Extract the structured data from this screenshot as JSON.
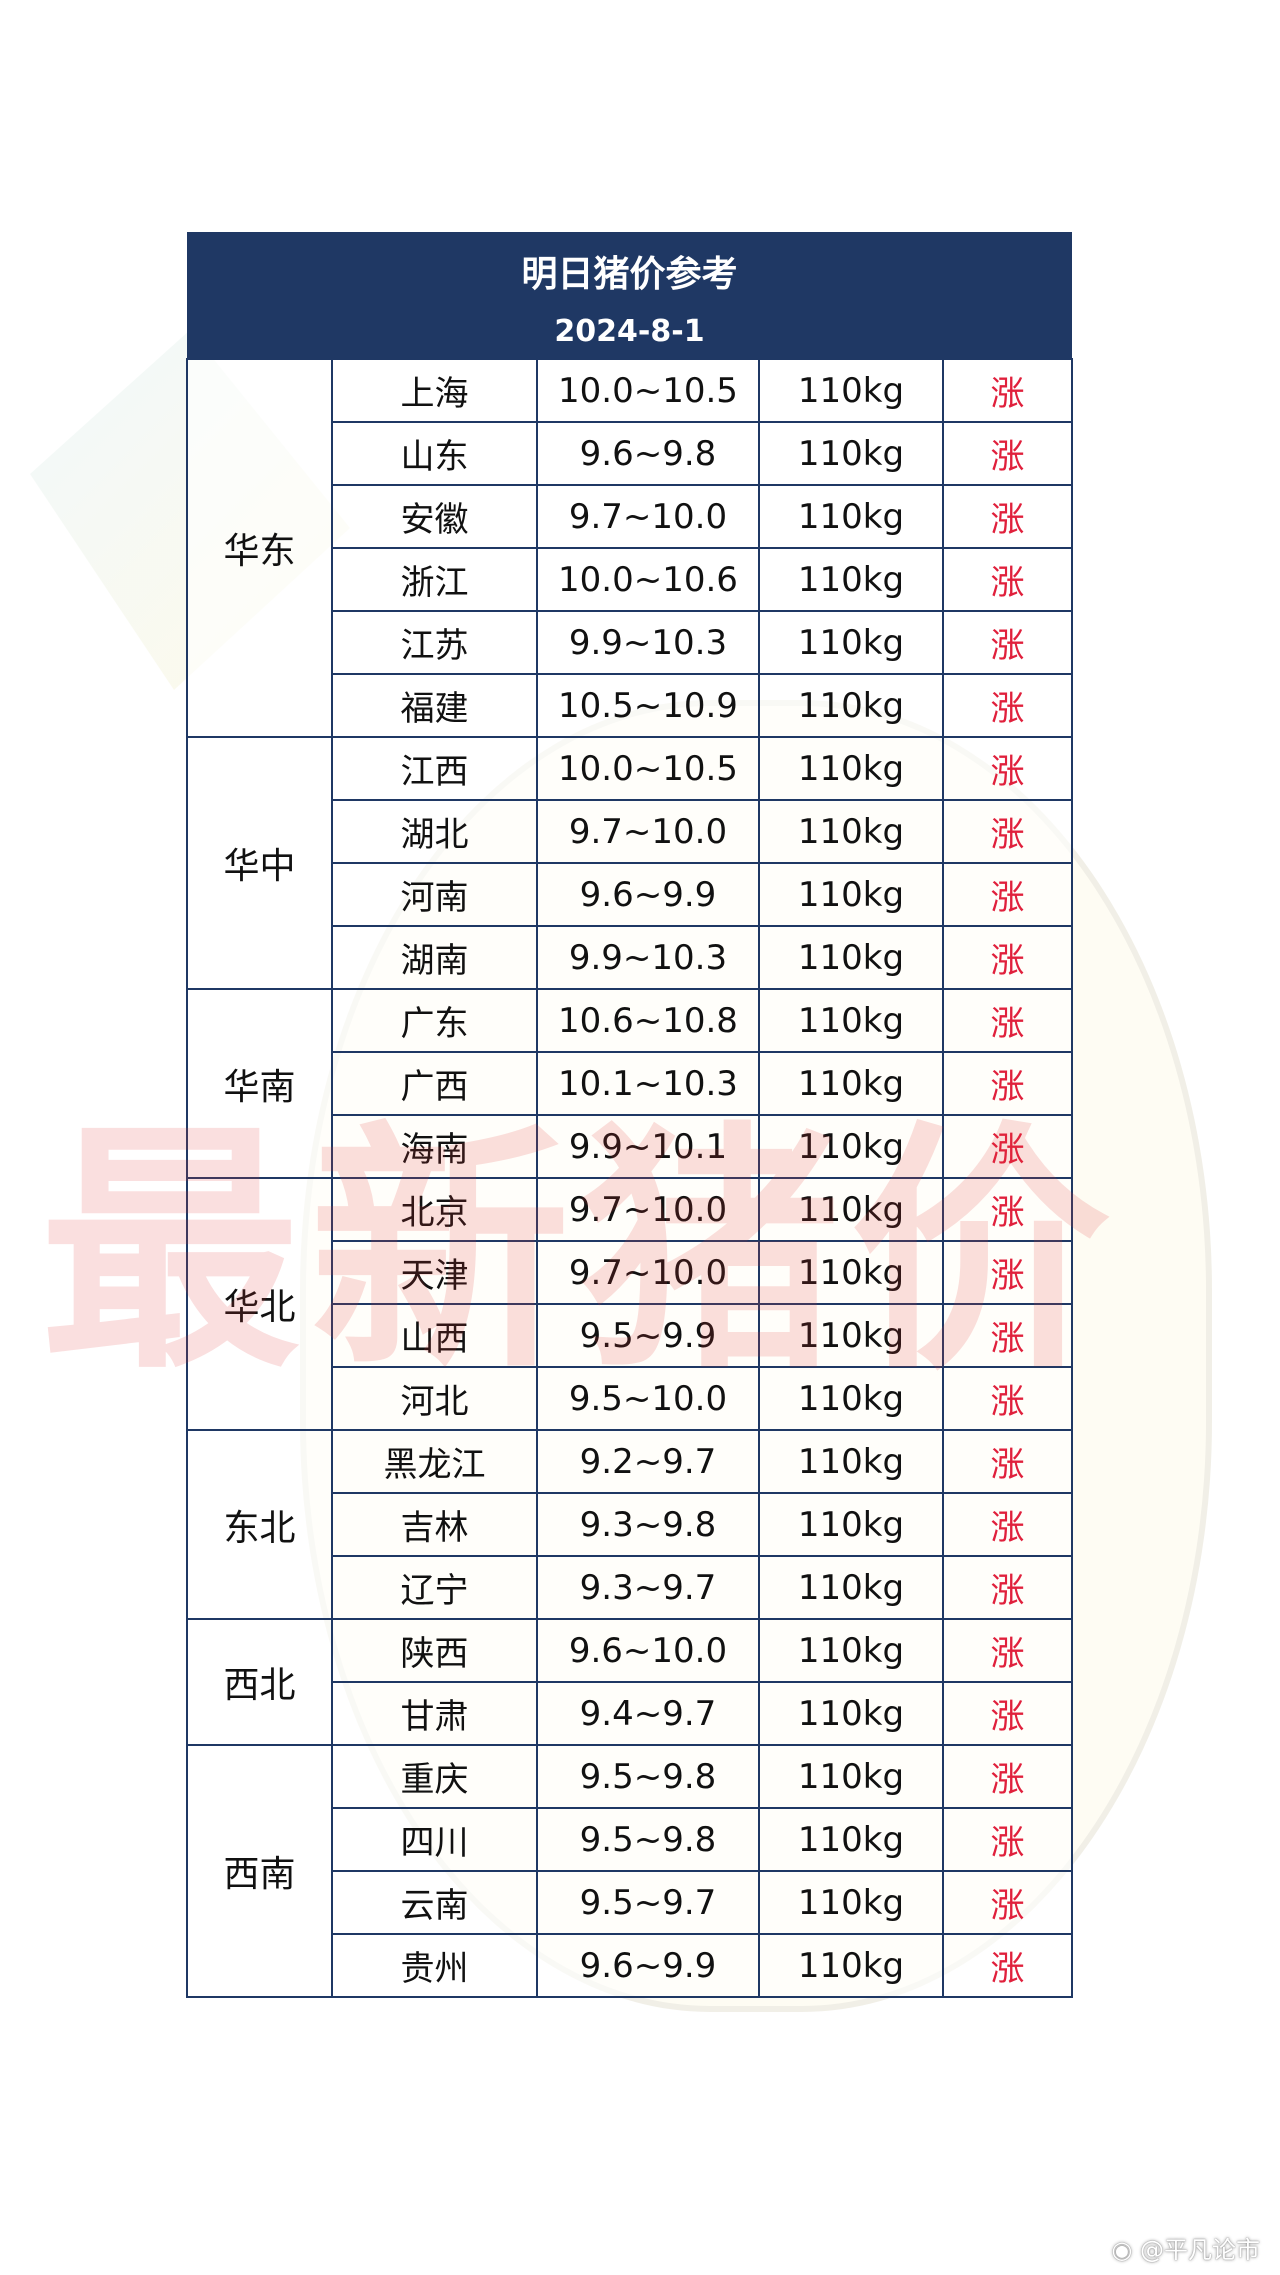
{
  "title": "明日猪价参考",
  "date": "2024-8-1",
  "watermark": "最新猪价",
  "credit": "@平凡论市",
  "trend_color": "#e0203c",
  "header_color": "#1f3864",
  "groups": [
    {
      "region": "华东",
      "rows": [
        [
          "上海",
          "10.0~10.5",
          "110kg",
          "涨"
        ],
        [
          "山东",
          "9.6~9.8",
          "110kg",
          "涨"
        ],
        [
          "安徽",
          "9.7~10.0",
          "110kg",
          "涨"
        ],
        [
          "浙江",
          "10.0~10.6",
          "110kg",
          "涨"
        ],
        [
          "江苏",
          "9.9~10.3",
          "110kg",
          "涨"
        ],
        [
          "福建",
          "10.5~10.9",
          "110kg",
          "涨"
        ]
      ]
    },
    {
      "region": "华中",
      "rows": [
        [
          "江西",
          "10.0~10.5",
          "110kg",
          "涨"
        ],
        [
          "湖北",
          "9.7~10.0",
          "110kg",
          "涨"
        ],
        [
          "河南",
          "9.6~9.9",
          "110kg",
          "涨"
        ],
        [
          "湖南",
          "9.9~10.3",
          "110kg",
          "涨"
        ]
      ]
    },
    {
      "region": "华南",
      "rows": [
        [
          "广东",
          "10.6~10.8",
          "110kg",
          "涨"
        ],
        [
          "广西",
          "10.1~10.3",
          "110kg",
          "涨"
        ],
        [
          "海南",
          "9.9~10.1",
          "110kg",
          "涨"
        ]
      ]
    },
    {
      "region": "华北",
      "rows": [
        [
          "北京",
          "9.7~10.0",
          "110kg",
          "涨"
        ],
        [
          "天津",
          "9.7~10.0",
          "110kg",
          "涨"
        ],
        [
          "山西",
          "9.5~9.9",
          "110kg",
          "涨"
        ],
        [
          "河北",
          "9.5~10.0",
          "110kg",
          "涨"
        ]
      ]
    },
    {
      "region": "东北",
      "rows": [
        [
          "黑龙江",
          "9.2~9.7",
          "110kg",
          "涨"
        ],
        [
          "吉林",
          "9.3~9.8",
          "110kg",
          "涨"
        ],
        [
          "辽宁",
          "9.3~9.7",
          "110kg",
          "涨"
        ]
      ]
    },
    {
      "region": "西北",
      "rows": [
        [
          "陕西",
          "9.6~10.0",
          "110kg",
          "涨"
        ],
        [
          "甘肃",
          "9.4~9.7",
          "110kg",
          "涨"
        ]
      ]
    },
    {
      "region": "西南",
      "rows": [
        [
          "重庆",
          "9.5~9.8",
          "110kg",
          "涨"
        ],
        [
          "四川",
          "9.5~9.8",
          "110kg",
          "涨"
        ],
        [
          "云南",
          "9.5~9.7",
          "110kg",
          "涨"
        ],
        [
          "贵州",
          "9.6~9.9",
          "110kg",
          "涨"
        ]
      ]
    }
  ]
}
